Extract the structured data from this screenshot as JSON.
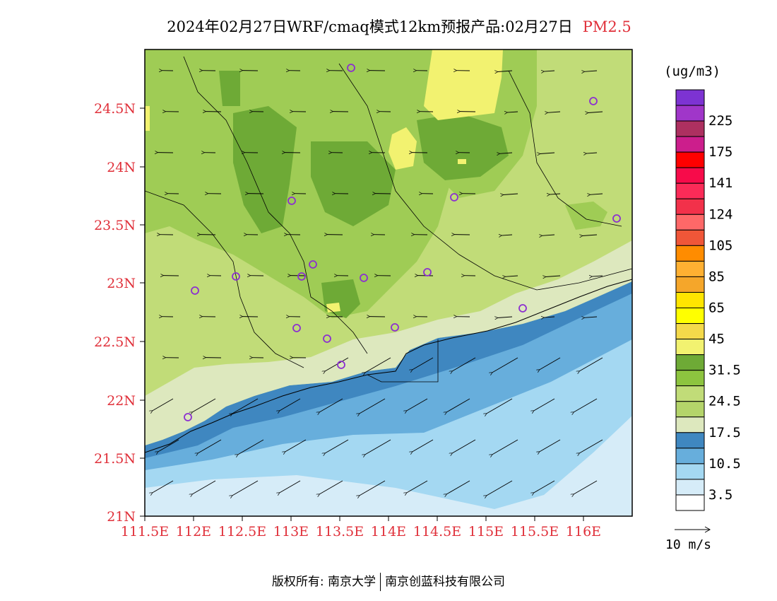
{
  "header": {
    "title": "2024年02月27日WRF/cmaq模式12km预报产品:02月27日",
    "pollutant": "PM2.5"
  },
  "map": {
    "lat_labels": [
      "24.5N",
      "24N",
      "23.5N",
      "23N",
      "22.5N",
      "22N",
      "21.5N",
      "21N"
    ],
    "lon_labels": [
      "111.5E",
      "112E",
      "112.5E",
      "113E",
      "113.5E",
      "114E",
      "114.5E",
      "115E",
      "115.5E",
      "116E"
    ],
    "colors": {
      "land_light": "#c1dc78",
      "land_mid": "#9fcc55",
      "land_dark": "#6eaa36",
      "land_pale": "#dde8be",
      "yellow": "#f2f270",
      "sea_dark": "#3f87c0",
      "sea_mid": "#67aedc",
      "sea_light": "#a4d8f2",
      "sea_palest": "#d6ecf8",
      "station": "#8c2fd0"
    }
  },
  "legend": {
    "unit": "(ug/m3)",
    "bins": [
      {
        "color": "#7d33d2",
        "label": ""
      },
      {
        "color": "#a036c9",
        "label": "225"
      },
      {
        "color": "#ad3060",
        "label": ""
      },
      {
        "color": "#cc1e8c",
        "label": "175"
      },
      {
        "color": "#ff0000",
        "label": ""
      },
      {
        "color": "#f70b4a",
        "label": "141"
      },
      {
        "color": "#fb2b58",
        "label": ""
      },
      {
        "color": "#f2314a",
        "label": "124"
      },
      {
        "color": "#fe6868",
        "label": ""
      },
      {
        "color": "#f05638",
        "label": "105"
      },
      {
        "color": "#ff8c00",
        "label": ""
      },
      {
        "color": "#ffb032",
        "label": "85"
      },
      {
        "color": "#f5a62a",
        "label": ""
      },
      {
        "color": "#ffe500",
        "label": "65"
      },
      {
        "color": "#ffff00",
        "label": ""
      },
      {
        "color": "#f4d94a",
        "label": "45"
      },
      {
        "color": "#f2f270",
        "label": ""
      },
      {
        "color": "#6eaa36",
        "label": "31.5"
      },
      {
        "color": "#8dc43f",
        "label": ""
      },
      {
        "color": "#c1dc78",
        "label": "24.5"
      },
      {
        "color": "#b4d46a",
        "label": ""
      },
      {
        "color": "#dde8be",
        "label": "17.5"
      },
      {
        "color": "#3f87c0",
        "label": ""
      },
      {
        "color": "#67aedc",
        "label": "10.5"
      },
      {
        "color": "#a4d8f2",
        "label": ""
      },
      {
        "color": "#d6ecf8",
        "label": "3.5"
      },
      {
        "color": "#ffffff",
        "label": ""
      }
    ],
    "wind_reference": "10 m/s"
  },
  "footer": {
    "copyright": "版权所有: 南京大学",
    "company": "南京创蓝科技有限公司"
  }
}
